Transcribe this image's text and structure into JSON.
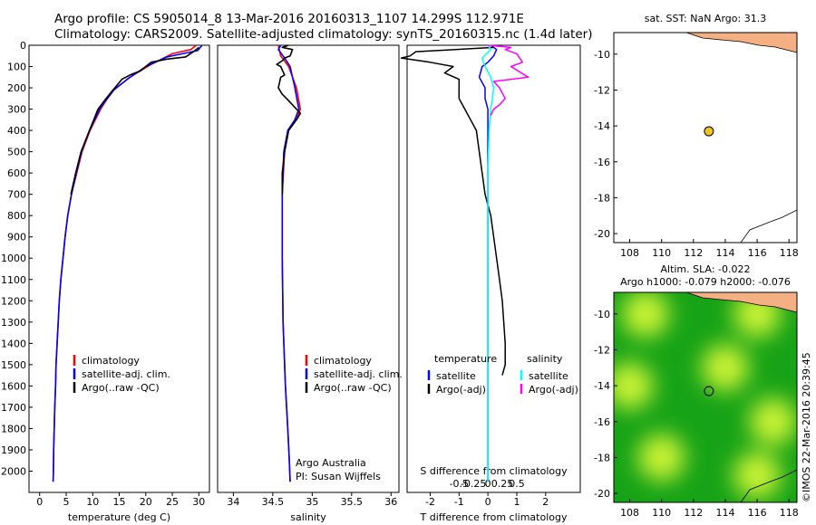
{
  "header": {
    "line1": "Argo profile: CS 5905014_8 13-Mar-2016 20160313_1107 14.299S 112.971E",
    "line2": "Climatology: CARS2009. Satellite-adjusted climatology: synTS_20160315.nc (1.4d later)"
  },
  "colors": {
    "climatology": "#ff0000",
    "satellite": "#0000ff",
    "argo": "#000000",
    "salinity_sat": "#00ffff",
    "salinity_argo": "#ff00ff",
    "land": "#f4b083",
    "sla_low": "#17a317",
    "sla_high": "#e6ff3a",
    "marker": "#f2c21f"
  },
  "chart_data": [
    {
      "type": "line",
      "id": "temperature",
      "xlabel": "temperature (deg C)",
      "ylabel": "",
      "xlim": [
        -2,
        32
      ],
      "ylim": [
        2100,
        0
      ],
      "xticks": [
        0,
        5,
        10,
        15,
        20,
        25,
        30
      ],
      "yticks": [
        0,
        100,
        200,
        300,
        400,
        500,
        600,
        700,
        800,
        900,
        1000,
        1100,
        1200,
        1300,
        1400,
        1500,
        1600,
        1700,
        1800,
        1900,
        2000
      ],
      "legend": [
        "climatology",
        "satellite-adj. clim.",
        "Argo(..raw -QC)"
      ],
      "legend_position": "lower-right",
      "series": [
        {
          "name": "climatology",
          "color_key": "climatology",
          "points": [
            [
              29.5,
              0
            ],
            [
              28.5,
              20
            ],
            [
              25,
              40
            ],
            [
              21,
              90
            ],
            [
              17,
              150
            ],
            [
              14,
              210
            ],
            [
              12.5,
              260
            ],
            [
              11.5,
              300
            ],
            [
              9.5,
              400
            ],
            [
              8,
              500
            ],
            [
              7,
              600
            ],
            [
              6,
              700
            ],
            [
              5.3,
              800
            ],
            [
              4.8,
              900
            ],
            [
              4.4,
              1000
            ],
            [
              4.0,
              1100
            ],
            [
              3.7,
              1200
            ],
            [
              3.5,
              1300
            ],
            [
              3.3,
              1400
            ],
            [
              3.1,
              1500
            ],
            [
              3.0,
              1600
            ],
            [
              2.85,
              1700
            ],
            [
              2.75,
              1800
            ],
            [
              2.65,
              1900
            ],
            [
              2.6,
              2000
            ],
            [
              2.55,
              2050
            ]
          ]
        },
        {
          "name": "satellite-adj. clim.",
          "color_key": "satellite",
          "points": [
            [
              30.6,
              0
            ],
            [
              29.8,
              25
            ],
            [
              24,
              55
            ],
            [
              20,
              100
            ],
            [
              16.5,
              160
            ],
            [
              14,
              210
            ],
            [
              12.4,
              260
            ],
            [
              11.3,
              300
            ],
            [
              9.4,
              400
            ],
            [
              7.9,
              500
            ],
            [
              6.9,
              600
            ],
            [
              6.0,
              700
            ],
            [
              5.3,
              800
            ],
            [
              4.8,
              900
            ],
            [
              4.4,
              1000
            ],
            [
              4.0,
              1100
            ],
            [
              3.7,
              1200
            ],
            [
              3.5,
              1300
            ],
            [
              3.3,
              1400
            ],
            [
              3.1,
              1500
            ],
            [
              3.0,
              1600
            ],
            [
              2.85,
              1700
            ],
            [
              2.75,
              1800
            ],
            [
              2.65,
              1900
            ],
            [
              2.6,
              2000
            ],
            [
              2.55,
              2050
            ]
          ]
        },
        {
          "name": "Argo(..raw -QC)",
          "color_key": "argo",
          "points": [
            [
              30.0,
              10
            ],
            [
              29.0,
              30
            ],
            [
              27.5,
              55
            ],
            [
              24,
              65
            ],
            [
              21,
              80
            ],
            [
              19,
              120
            ],
            [
              17,
              140
            ],
            [
              15.5,
              160
            ],
            [
              15,
              175
            ],
            [
              13.5,
              220
            ],
            [
              12.2,
              260
            ],
            [
              11,
              300
            ],
            [
              9.4,
              400
            ],
            [
              7.8,
              500
            ],
            [
              6.8,
              600
            ],
            [
              5.9,
              700
            ]
          ]
        }
      ]
    },
    {
      "type": "line",
      "id": "salinity",
      "xlabel": "salinity",
      "ylabel": "",
      "xlim": [
        33.8,
        36.1
      ],
      "ylim": [
        2100,
        0
      ],
      "xticks": [
        34,
        34.5,
        35,
        35.5,
        36
      ],
      "xticklabels": [
        "34",
        "34.5",
        "35",
        "35.5",
        "36"
      ],
      "legend": [
        "climatology",
        "satellite-adj. clim.",
        "Argo(..raw -QC)"
      ],
      "legend_position": "lower-right",
      "annotations": [
        "Argo Australia",
        "PI: Susan Wijffels"
      ],
      "series": [
        {
          "name": "climatology",
          "color_key": "climatology",
          "points": [
            [
              34.57,
              0
            ],
            [
              34.6,
              50
            ],
            [
              34.7,
              100
            ],
            [
              34.8,
              200
            ],
            [
              34.85,
              300
            ],
            [
              34.8,
              350
            ],
            [
              34.7,
              400
            ],
            [
              34.65,
              500
            ],
            [
              34.62,
              700
            ],
            [
              34.62,
              1000
            ],
            [
              34.63,
              1300
            ],
            [
              34.66,
              1600
            ],
            [
              34.69,
              1800
            ],
            [
              34.71,
              1950
            ],
            [
              34.72,
              2050
            ]
          ]
        },
        {
          "name": "satellite-adj. clim.",
          "color_key": "satellite",
          "points": [
            [
              34.6,
              0
            ],
            [
              34.57,
              20
            ],
            [
              34.65,
              60
            ],
            [
              34.72,
              100
            ],
            [
              34.78,
              200
            ],
            [
              34.83,
              300
            ],
            [
              34.78,
              350
            ],
            [
              34.69,
              400
            ],
            [
              34.64,
              500
            ],
            [
              34.62,
              700
            ],
            [
              34.62,
              1000
            ],
            [
              34.63,
              1300
            ],
            [
              34.66,
              1600
            ],
            [
              34.69,
              1800
            ],
            [
              34.71,
              1950
            ],
            [
              34.72,
              2050
            ]
          ]
        },
        {
          "name": "Argo(..raw -QC)",
          "color_key": "argo",
          "points": [
            [
              34.7,
              0
            ],
            [
              34.62,
              10
            ],
            [
              34.75,
              20
            ],
            [
              34.72,
              50
            ],
            [
              34.65,
              60
            ],
            [
              34.63,
              70
            ],
            [
              34.55,
              90
            ],
            [
              34.6,
              100
            ],
            [
              34.65,
              140
            ],
            [
              34.6,
              150
            ],
            [
              34.57,
              200
            ],
            [
              34.62,
              230
            ],
            [
              34.7,
              260
            ],
            [
              34.8,
              300
            ],
            [
              34.85,
              320
            ],
            [
              34.8,
              350
            ],
            [
              34.7,
              400
            ],
            [
              34.65,
              500
            ],
            [
              34.62,
              600
            ],
            [
              34.62,
              700
            ]
          ]
        }
      ]
    },
    {
      "type": "line",
      "id": "difference",
      "xlabel": "T difference from climatology",
      "secondary_xlabel": "S difference from climatology",
      "xlim": [
        -2.8,
        3.2
      ],
      "ylim": [
        2100,
        0
      ],
      "xticks": [
        -2,
        -1,
        0,
        1,
        2
      ],
      "secondary_xticks": [
        -0.5,
        -0.25,
        0,
        0.25,
        0.5
      ],
      "secondary_xticklabels": [
        "-0.5",
        "-0.25",
        "0",
        "0.25",
        "0.5"
      ],
      "legend_headers": [
        "temperature",
        "salinity"
      ],
      "legend": [
        "satellite",
        "Argo(-adj)",
        "satellite",
        "Argo(-adj)"
      ],
      "legend_position": "lower-left",
      "series": [
        {
          "name": "satellite",
          "group": "temperature",
          "color_key": "satellite",
          "points": [
            [
              0.1,
              0
            ],
            [
              0.3,
              20
            ],
            [
              0.2,
              50
            ],
            [
              0,
              80
            ],
            [
              -0.2,
              100
            ],
            [
              -0.3,
              150
            ],
            [
              -0.1,
              200
            ],
            [
              -0.1,
              250
            ],
            [
              0,
              300
            ],
            [
              0,
              400
            ],
            [
              0,
              600
            ],
            [
              0,
              800
            ],
            [
              0,
              1000
            ],
            [
              0,
              1200
            ],
            [
              0,
              1500
            ],
            [
              0,
              1800
            ],
            [
              0,
              2050
            ]
          ]
        },
        {
          "name": "Argo(-adj)",
          "group": "temperature",
          "color_key": "argo",
          "points": [
            [
              0.2,
              10
            ],
            [
              -2.5,
              30
            ],
            [
              -2.7,
              50
            ],
            [
              -3,
              60
            ],
            [
              -2,
              80
            ],
            [
              -1.2,
              100
            ],
            [
              -1.5,
              130
            ],
            [
              -1,
              160
            ],
            [
              -1,
              200
            ],
            [
              -1,
              250
            ],
            [
              -0.8,
              300
            ],
            [
              -0.6,
              350
            ],
            [
              -0.4,
              400
            ],
            [
              -0.3,
              500
            ],
            [
              -0.2,
              600
            ],
            [
              -0.1,
              700
            ],
            [
              0.1,
              800
            ],
            [
              0.2,
              900
            ],
            [
              0.3,
              1000
            ],
            [
              0.4,
              1100
            ],
            [
              0.5,
              1200
            ],
            [
              0.55,
              1300
            ],
            [
              0.6,
              1400
            ],
            [
              0.6,
              1500
            ],
            [
              0.5,
              1550
            ]
          ]
        },
        {
          "name": "satellite",
          "group": "salinity",
          "color_key": "salinity_sat",
          "points": [
            [
              0,
              0
            ],
            [
              0.05,
              20
            ],
            [
              -0.1,
              60
            ],
            [
              -0.05,
              100
            ],
            [
              0.05,
              150
            ],
            [
              0.1,
              200
            ],
            [
              0.08,
              250
            ],
            [
              0.05,
              300
            ],
            [
              0.02,
              400
            ],
            [
              0,
              600
            ],
            [
              0,
              1000
            ],
            [
              0,
              1500
            ],
            [
              0,
              2050
            ]
          ]
        },
        {
          "name": "Argo(-adj)",
          "group": "salinity",
          "color_key": "salinity_argo",
          "points": [
            [
              0,
              0
            ],
            [
              0.4,
              10
            ],
            [
              0.3,
              20
            ],
            [
              0.5,
              40
            ],
            [
              0.6,
              80
            ],
            [
              0.4,
              100
            ],
            [
              0.7,
              150
            ],
            [
              0.1,
              170
            ],
            [
              0.2,
              200
            ],
            [
              0.3,
              250
            ],
            [
              0.2,
              280
            ],
            [
              0.1,
              300
            ],
            [
              0.05,
              330
            ]
          ]
        }
      ]
    },
    {
      "type": "scatter",
      "id": "sst_map",
      "title": "sat. SST: NaN Argo: 31.3",
      "xlim": [
        107,
        118.5
      ],
      "ylim": [
        -20.5,
        -8.8
      ],
      "xticks": [
        108,
        110,
        112,
        114,
        116,
        118
      ],
      "yticks": [
        -10,
        -12,
        -14,
        -16,
        -18,
        -20
      ],
      "yticklabels": [
        "-10",
        "-12",
        "-14",
        "-16",
        "-18",
        "-20"
      ],
      "points": [
        [
          112.97,
          -14.3
        ]
      ],
      "marker_color_key": "marker"
    },
    {
      "type": "heatmap",
      "id": "sla_map",
      "title": "Altim. SLA: -0.022",
      "subtitle": "Argo h1000: -0.079 h2000: -0.076",
      "xlim": [
        107,
        118.5
      ],
      "ylim": [
        -20.5,
        -8.8
      ],
      "xticks": [
        108,
        110,
        112,
        114,
        116,
        118
      ],
      "yticks": [
        -10,
        -12,
        -14,
        -16,
        -18,
        -20
      ],
      "yticklabels": [
        "-10",
        "-12",
        "-14",
        "-16",
        "-18",
        "-20"
      ],
      "points": [
        [
          112.97,
          -14.3
        ]
      ],
      "high_regions": [
        [
          116,
          -10
        ],
        [
          114,
          -13
        ],
        [
          109,
          -10
        ],
        [
          110,
          -18
        ],
        [
          116,
          -19
        ],
        [
          117,
          -16
        ],
        [
          108,
          -14
        ]
      ]
    }
  ],
  "footer": {
    "credit": "©IMOS 22-Mar-2016 20:39:45"
  }
}
